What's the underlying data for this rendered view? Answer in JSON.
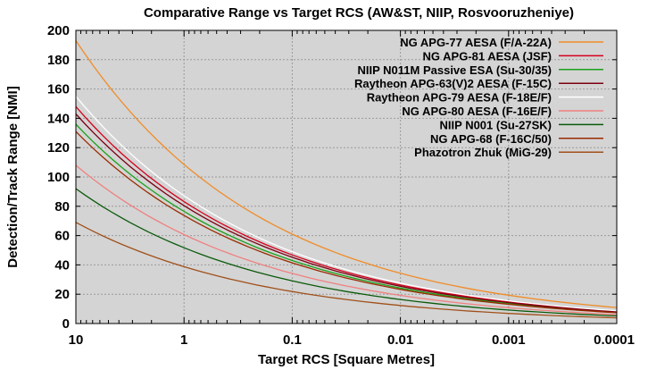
{
  "chart_data": {
    "type": "line",
    "title": "Comparative Range vs Target RCS (AW&ST, NIIP, Rosvooruzheniye)",
    "xlabel": "Target RCS [Square Metres]",
    "ylabel": "Detection/Track Range [NMI]",
    "x_scale": "log",
    "x_reversed": true,
    "xlim": [
      10,
      0.0001
    ],
    "ylim": [
      0,
      200
    ],
    "x_ticks": [
      10,
      1,
      0.1,
      0.01,
      0.001,
      0.0001
    ],
    "x_tick_labels": [
      "10",
      "1",
      "0.1",
      "0.01",
      "0.001",
      "0.0001"
    ],
    "y_ticks": [
      0,
      20,
      40,
      60,
      80,
      100,
      120,
      140,
      160,
      180,
      200
    ],
    "grid": true,
    "legend_position": "top-right",
    "background_color": "#d4d4d4",
    "x_sample_points": [
      10,
      1,
      0.1,
      0.01,
      0.001,
      0.0001
    ],
    "series": [
      {
        "name": "NG APG-77 AESA (F/A-22A)",
        "color": "#f08c28",
        "values": [
          193,
          108.5,
          61,
          34.3,
          19.3,
          10.9
        ]
      },
      {
        "name": "NG APG-81 AESA (JSF)",
        "color": "#d4001c",
        "values": [
          148,
          83.2,
          46.8,
          26.3,
          14.8,
          8.3
        ]
      },
      {
        "name": "NIIP N011M Passive ESA (Su-30/35)",
        "color": "#1aa01a",
        "values": [
          136,
          76.5,
          43,
          24.2,
          13.6,
          7.6
        ]
      },
      {
        "name": "Raytheon APG-63(V)2 AESA (F-15C)",
        "color": "#7a0010",
        "values": [
          143,
          80.4,
          45.2,
          25.4,
          14.3,
          8.0
        ]
      },
      {
        "name": "Raytheon APG-79 AESA (F-18E/F)",
        "color": "#ffffff",
        "values": [
          155,
          87.2,
          49,
          27.6,
          15.5,
          8.7
        ]
      },
      {
        "name": "NG APG-80 AESA (F-16E/F)",
        "color": "#f08080",
        "values": [
          108,
          60.7,
          34.2,
          19.2,
          10.8,
          6.1
        ]
      },
      {
        "name": "NIIP N001 (Su-27SK)",
        "color": "#0a5a0a",
        "values": [
          92,
          51.7,
          29.1,
          16.4,
          9.2,
          5.2
        ]
      },
      {
        "name": "NG APG-68 (F-16C/50)",
        "color": "#9a2a00",
        "values": [
          131,
          73.7,
          41.4,
          23.3,
          13.1,
          7.4
        ]
      },
      {
        "name": "Phazotron Zhuk (MiG-29)",
        "color": "#a0501a",
        "values": [
          69,
          38.8,
          21.8,
          12.3,
          6.9,
          3.9
        ]
      }
    ]
  }
}
